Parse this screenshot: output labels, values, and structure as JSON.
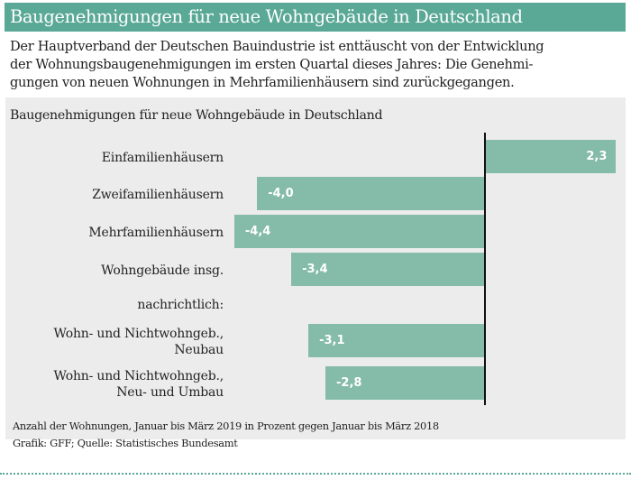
{
  "header": {
    "title": "Baugenehmigungen für neue Wohngebäude in Deutschland"
  },
  "intro": {
    "lines": [
      "Der Hauptverband der Deutschen Bauindustrie ist enttäuscht von der Entwicklung",
      "der Wohnungsbaugenehmigungen im ersten Quartal dieses Jahres: Die Genehmi-",
      "gungen von neuen Wohnungen in Mehrfamilienhäusern sind zurückgegangen."
    ]
  },
  "colors": {
    "header": "#5aa896",
    "bar": "#84bba9",
    "panel": "#ececec"
  },
  "chart_data": {
    "type": "bar",
    "orientation": "horizontal",
    "title": "Baugenehmigungen für neue Wohngebäude in Deutschland",
    "categories": [
      [
        "Einfamilienhäusern"
      ],
      [
        "Zweifamilienhäusern"
      ],
      [
        "Mehrfamilienhäusern"
      ],
      [
        "Wohngebäude insg."
      ],
      [
        "Wohn- und Nichtwohngeb.,",
        "Neubau"
      ],
      [
        "Wohn- und Nichtwohngeb.,",
        "Neu- und Umbau"
      ]
    ],
    "values": [
      2.3,
      -4.0,
      -4.4,
      -3.4,
      -3.1,
      -2.8
    ],
    "value_labels": [
      "2,3",
      "-4,0",
      "-4,4",
      "-3,4",
      "-3,1",
      "-2,8"
    ],
    "group_label": "nachrichtlich:",
    "grid": false,
    "note": "Anzahl der Wohnungen, Januar bis März 2019 in Prozent gegen Januar bis März 2018",
    "source": "Grafik: GFF; Quelle: Statistisches Bundesamt"
  }
}
